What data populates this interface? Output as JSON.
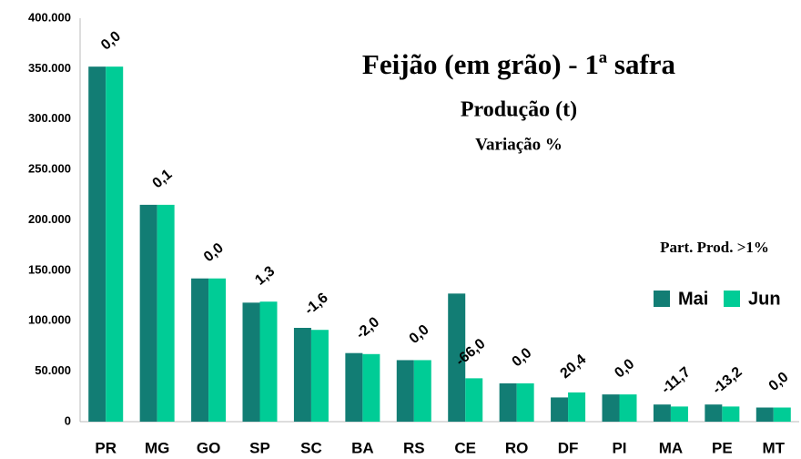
{
  "chart_data": {
    "type": "bar",
    "title": "Feijão (em grão) - 1ª safra",
    "subtitle": "Produção (t)",
    "annotation": "Variação %",
    "note": "Part. Prod. >1%",
    "categories": [
      "PR",
      "MG",
      "GO",
      "SP",
      "SC",
      "BA",
      "RS",
      "CE",
      "RO",
      "DF",
      "PI",
      "MA",
      "PE",
      "MT"
    ],
    "series": [
      {
        "name": "Mai",
        "color": "#127d74",
        "values": [
          352000,
          215000,
          142000,
          118000,
          93000,
          68000,
          61000,
          127000,
          38000,
          24000,
          27000,
          17000,
          17000,
          14000
        ]
      },
      {
        "name": "Jun",
        "color": "#00cc96",
        "values": [
          352000,
          215000,
          142000,
          119000,
          91000,
          67000,
          61000,
          43000,
          38000,
          29000,
          27000,
          15000,
          15000,
          14000
        ]
      }
    ],
    "variation": {
      "values": [
        0,
        0.1,
        0,
        1.3,
        -1.6,
        -2.0,
        0,
        -66.0,
        0,
        20.4,
        0,
        -11.7,
        -13.2,
        0
      ],
      "value_labels": [
        "0,0",
        "0,1",
        "0,0",
        "1,3",
        "-1,6",
        "-2,0",
        "0,0",
        "-66,0",
        "0,0",
        "20,4",
        "0,0",
        "-11,7",
        "-13,2",
        "0,0"
      ]
    },
    "ylim": [
      0,
      400000
    ],
    "yticks": [
      0,
      {
        "value": 50000,
        "label": "50.000"
      },
      {
        "value": 100000,
        "label": "100.000"
      },
      {
        "value": 150000,
        "label": "150.000"
      },
      {
        "value": 200000,
        "label": "200.000"
      },
      {
        "value": 250000,
        "label": "250.000"
      },
      {
        "value": 300000,
        "label": "300.000"
      },
      {
        "value": 350000,
        "label": "350.000"
      },
      {
        "value": 400000,
        "label": "400.000"
      }
    ],
    "grid": false,
    "legend": "right"
  }
}
